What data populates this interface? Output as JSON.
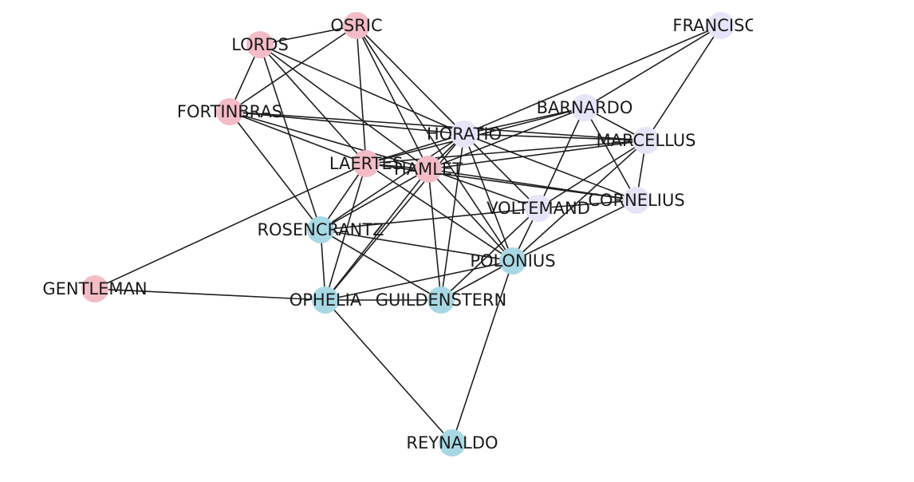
{
  "colors": {
    "pink": "#f4bcc6",
    "lavender": "#e5e4f8",
    "blue": "#a8d8e4",
    "edge": "#1f1f1f"
  },
  "nodes": [
    {
      "id": "OSRIC",
      "label": "OSRIC",
      "color": "pink"
    },
    {
      "id": "LORDS",
      "label": "LORDS",
      "color": "pink"
    },
    {
      "id": "FORTINBRAS",
      "label": "FORTINBRAS",
      "color": "pink"
    },
    {
      "id": "LAERTES",
      "label": "LAERTES",
      "color": "pink"
    },
    {
      "id": "HAMLET",
      "label": "HAMLET",
      "color": "pink"
    },
    {
      "id": "GENTLEMAN",
      "label": "GENTLEMAN",
      "color": "pink"
    },
    {
      "id": "FRANCISCO",
      "label": "FRANCISCO",
      "color": "lavender"
    },
    {
      "id": "BARNARDO",
      "label": "BARNARDO",
      "color": "lavender"
    },
    {
      "id": "HORATIO",
      "label": "HORATIO",
      "color": "lavender"
    },
    {
      "id": "MARCELLUS",
      "label": "MARCELLUS",
      "color": "lavender"
    },
    {
      "id": "CORNELIUS",
      "label": "CORNELIUS",
      "color": "lavender"
    },
    {
      "id": "VOLTEMAND",
      "label": "VOLTEMAND",
      "color": "lavender"
    },
    {
      "id": "ROSENCRANTZ",
      "label": "ROSENCRANTZ",
      "color": "blue"
    },
    {
      "id": "POLONIUS",
      "label": "POLONIUS",
      "color": "blue"
    },
    {
      "id": "OPHELIA",
      "label": "OPHELIA",
      "color": "blue"
    },
    {
      "id": "GUILDENSTERN",
      "label": "GUILDENSTERN",
      "color": "blue"
    },
    {
      "id": "REYNALDO",
      "label": "REYNALDO",
      "color": "blue"
    }
  ],
  "edges": [
    [
      "OSRIC",
      "LORDS"
    ],
    [
      "OSRIC",
      "FORTINBRAS"
    ],
    [
      "OSRIC",
      "LAERTES"
    ],
    [
      "OSRIC",
      "HAMLET"
    ],
    [
      "OSRIC",
      "HORATIO"
    ],
    [
      "OSRIC",
      "POLONIUS"
    ],
    [
      "LORDS",
      "FORTINBRAS"
    ],
    [
      "LORDS",
      "LAERTES"
    ],
    [
      "LORDS",
      "HAMLET"
    ],
    [
      "LORDS",
      "HORATIO"
    ],
    [
      "LORDS",
      "ROSENCRANTZ"
    ],
    [
      "FORTINBRAS",
      "LAERTES"
    ],
    [
      "FORTINBRAS",
      "HAMLET"
    ],
    [
      "FORTINBRAS",
      "HORATIO"
    ],
    [
      "FORTINBRAS",
      "ROSENCRANTZ"
    ],
    [
      "FORTINBRAS",
      "MARCELLUS"
    ],
    [
      "LAERTES",
      "HAMLET"
    ],
    [
      "LAERTES",
      "HORATIO"
    ],
    [
      "LAERTES",
      "BARNARDO"
    ],
    [
      "LAERTES",
      "MARCELLUS"
    ],
    [
      "LAERTES",
      "CORNELIUS"
    ],
    [
      "LAERTES",
      "OPHELIA"
    ],
    [
      "LAERTES",
      "GENTLEMAN"
    ],
    [
      "LAERTES",
      "POLONIUS"
    ],
    [
      "LAERTES",
      "ROSENCRANTZ"
    ],
    [
      "HAMLET",
      "HORATIO"
    ],
    [
      "HAMLET",
      "BARNARDO"
    ],
    [
      "HAMLET",
      "MARCELLUS"
    ],
    [
      "HAMLET",
      "CORNELIUS"
    ],
    [
      "HAMLET",
      "VOLTEMAND"
    ],
    [
      "HAMLET",
      "ROSENCRANTZ"
    ],
    [
      "HAMLET",
      "POLONIUS"
    ],
    [
      "HAMLET",
      "OPHELIA"
    ],
    [
      "HAMLET",
      "GUILDENSTERN"
    ],
    [
      "GENTLEMAN",
      "OPHELIA"
    ],
    [
      "FRANCISCO",
      "HORATIO"
    ],
    [
      "FRANCISCO",
      "BARNARDO"
    ],
    [
      "FRANCISCO",
      "MARCELLUS"
    ],
    [
      "BARNARDO",
      "HORATIO"
    ],
    [
      "BARNARDO",
      "MARCELLUS"
    ],
    [
      "BARNARDO",
      "CORNELIUS"
    ],
    [
      "BARNARDO",
      "VOLTEMAND"
    ],
    [
      "HORATIO",
      "MARCELLUS"
    ],
    [
      "HORATIO",
      "CORNELIUS"
    ],
    [
      "HORATIO",
      "VOLTEMAND"
    ],
    [
      "HORATIO",
      "ROSENCRANTZ"
    ],
    [
      "HORATIO",
      "POLONIUS"
    ],
    [
      "HORATIO",
      "OPHELIA"
    ],
    [
      "HORATIO",
      "GUILDENSTERN"
    ],
    [
      "MARCELLUS",
      "CORNELIUS"
    ],
    [
      "MARCELLUS",
      "VOLTEMAND"
    ],
    [
      "MARCELLUS",
      "POLONIUS"
    ],
    [
      "CORNELIUS",
      "VOLTEMAND"
    ],
    [
      "CORNELIUS",
      "POLONIUS"
    ],
    [
      "VOLTEMAND",
      "POLONIUS"
    ],
    [
      "VOLTEMAND",
      "ROSENCRANTZ"
    ],
    [
      "VOLTEMAND",
      "GUILDENSTERN"
    ],
    [
      "ROSENCRANTZ",
      "POLONIUS"
    ],
    [
      "ROSENCRANTZ",
      "OPHELIA"
    ],
    [
      "ROSENCRANTZ",
      "GUILDENSTERN"
    ],
    [
      "POLONIUS",
      "OPHELIA"
    ],
    [
      "POLONIUS",
      "GUILDENSTERN"
    ],
    [
      "POLONIUS",
      "REYNALDO"
    ],
    [
      "OPHELIA",
      "GUILDENSTERN"
    ],
    [
      "OPHELIA",
      "REYNALDO"
    ]
  ]
}
